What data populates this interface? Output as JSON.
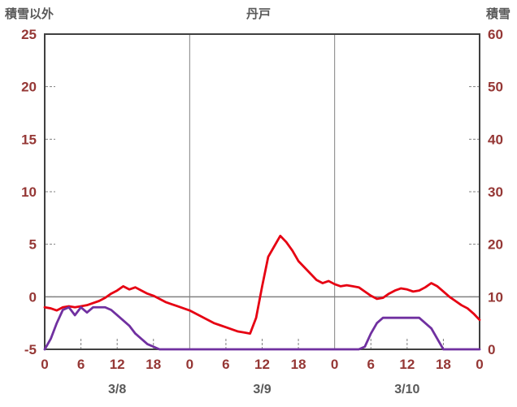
{
  "header": {
    "left_axis_title": "積雪以外",
    "title": "丹戸",
    "right_axis_title": "積雪"
  },
  "chart_data": {
    "type": "line",
    "title": "丹戸",
    "x_range": [
      0,
      72
    ],
    "x_ticks": [
      {
        "hour": 0,
        "label": "0"
      },
      {
        "hour": 6,
        "label": "6"
      },
      {
        "hour": 12,
        "label": "12"
      },
      {
        "hour": 18,
        "label": "18"
      },
      {
        "hour": 24,
        "label": "0"
      },
      {
        "hour": 30,
        "label": "6"
      },
      {
        "hour": 36,
        "label": "12"
      },
      {
        "hour": 42,
        "label": "18"
      },
      {
        "hour": 48,
        "label": "0"
      },
      {
        "hour": 54,
        "label": "6"
      },
      {
        "hour": 60,
        "label": "12"
      },
      {
        "hour": 66,
        "label": "18"
      },
      {
        "hour": 72,
        "label": "0"
      }
    ],
    "date_labels": [
      {
        "hour": 12,
        "label": "3/8"
      },
      {
        "hour": 36,
        "label": "3/9"
      },
      {
        "hour": 60,
        "label": "3/10"
      }
    ],
    "grid_hours": [
      24,
      48
    ],
    "minor_tick_hours": [
      6,
      12,
      18,
      30,
      36,
      42,
      54,
      60,
      66
    ],
    "left_axis": {
      "title": "積雪以外",
      "range": [
        -5,
        25
      ],
      "ticks": [
        25,
        20,
        15,
        10,
        5,
        0,
        -5
      ]
    },
    "right_axis": {
      "title": "積雪",
      "range": [
        0,
        60
      ],
      "ticks": [
        60,
        50,
        40,
        30,
        20,
        10,
        0
      ]
    },
    "zero_line_left_value": 0,
    "series": [
      {
        "id": "red-line",
        "axis": "left",
        "color": "#e60012",
        "values": [
          -1.0,
          -1.1,
          -1.3,
          -1.0,
          -0.9,
          -1.0,
          -0.9,
          -0.8,
          -0.6,
          -0.4,
          -0.1,
          0.3,
          0.6,
          1.0,
          0.7,
          0.9,
          0.6,
          0.3,
          0.1,
          -0.2,
          -0.5,
          -0.7,
          -0.9,
          -1.1,
          -1.3,
          -1.6,
          -1.9,
          -2.2,
          -2.5,
          -2.7,
          -2.9,
          -3.1,
          -3.3,
          -3.4,
          -3.5,
          -2.0,
          1.0,
          3.8,
          4.8,
          5.8,
          5.2,
          4.4,
          3.4,
          2.8,
          2.2,
          1.6,
          1.3,
          1.5,
          1.2,
          1.0,
          1.1,
          1.0,
          0.9,
          0.5,
          0.1,
          -0.2,
          -0.1,
          0.3,
          0.6,
          0.8,
          0.7,
          0.5,
          0.6,
          0.9,
          1.3,
          1.0,
          0.5,
          0.0,
          -0.4,
          -0.8,
          -1.1,
          -1.6,
          -2.2
        ]
      },
      {
        "id": "purple-line",
        "axis": "right",
        "color": "#7030a0",
        "values": [
          0,
          2,
          5,
          7.5,
          8,
          6.5,
          8,
          7,
          8,
          8,
          8,
          7.5,
          6.5,
          5.5,
          4.5,
          3,
          2,
          1,
          0.5,
          0,
          0,
          0,
          0,
          0,
          0,
          0,
          0,
          0,
          0,
          0,
          0,
          0,
          0,
          0,
          0,
          0,
          0,
          0,
          0,
          0,
          0,
          0,
          0,
          0,
          0,
          0,
          0,
          0,
          0,
          0,
          0,
          0,
          0,
          0.5,
          3,
          5,
          6,
          6,
          6,
          6,
          6,
          6,
          6,
          5,
          4,
          2,
          0,
          0,
          0,
          0,
          0,
          0,
          0
        ]
      }
    ],
    "colors": {
      "grid": "#808080",
      "border": "#404040",
      "tick_label": "#953735",
      "header_text": "#595959"
    }
  }
}
